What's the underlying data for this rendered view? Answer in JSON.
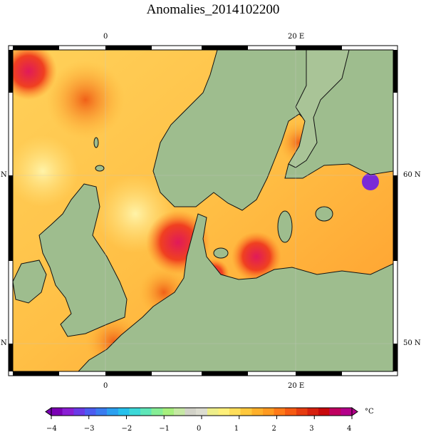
{
  "title": "Anomalies_2014102200",
  "axes": {
    "top_ticks": [
      "0",
      "20 E"
    ],
    "bottom_ticks": [
      "0",
      "20 E"
    ],
    "left_ticks": [
      "N",
      "N"
    ],
    "right_ticks": [
      "60 N",
      "50 N"
    ]
  },
  "colorbar": {
    "unit": "°C",
    "ticks": [
      "−4",
      "−3",
      "−2",
      "−1",
      "0",
      "1",
      "2",
      "3",
      "4"
    ],
    "min": -4,
    "max": 4,
    "colors": [
      "#7a00b4",
      "#8a1ed4",
      "#6a3ae6",
      "#4c5cf0",
      "#3a7cf0",
      "#2ba0f0",
      "#26c0ec",
      "#3cd8d8",
      "#5ee6b8",
      "#86ee96",
      "#a8f07e",
      "#c6e8a4",
      "#d2d2c8",
      "#dcdcd0",
      "#eeee8a",
      "#fff07a",
      "#ffde5a",
      "#ffc83c",
      "#ffb02a",
      "#ff9a20",
      "#ff7a18",
      "#f65a12",
      "#e63c10",
      "#d6200e",
      "#c8080c",
      "#c00060",
      "#b4008a"
    ]
  },
  "map": {
    "land_color": "#9ebd8e",
    "coast_color": "#000000",
    "sea_palette": [
      "#ffe05a",
      "#ffc63c",
      "#ffad2a",
      "#ff8e20",
      "#f5641a",
      "#e93e16",
      "#d82a3a",
      "#e01660",
      "#c00080"
    ]
  }
}
